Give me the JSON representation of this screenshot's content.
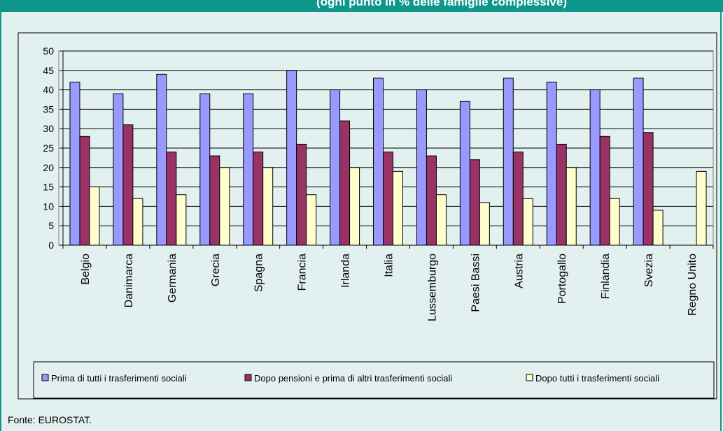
{
  "header": {
    "title": "(ogni punto in % delle famiglie complessive)"
  },
  "source": "Fonte: EUROSTAT.",
  "chart_data": {
    "type": "bar",
    "title": "",
    "xlabel": "",
    "ylabel": "",
    "ylim": [
      0,
      50
    ],
    "yticks": [
      0,
      5,
      10,
      15,
      20,
      25,
      30,
      35,
      40,
      45,
      50
    ],
    "grid": true,
    "legend_position": "bottom",
    "categories": [
      "Belgio",
      "Danimarca",
      "Germania",
      "Grecia",
      "Spagna",
      "Francia",
      "Irlanda",
      "Italia",
      "Lussemburgo",
      "Paesi Bassi",
      "Austria",
      "Portogallo",
      "Finlandia",
      "Svezia",
      "Regno Unito"
    ],
    "series": [
      {
        "name": "Prima di tutti i trasferimenti sociali",
        "color": "#9999ff",
        "values": [
          42,
          39,
          44,
          39,
          39,
          45,
          40,
          43,
          40,
          37,
          43,
          42,
          40,
          43,
          null
        ]
      },
      {
        "name": "Dopo pensioni e prima di altri trasferimenti sociali",
        "color": "#993366",
        "values": [
          28,
          31,
          24,
          23,
          24,
          26,
          32,
          24,
          23,
          22,
          24,
          26,
          28,
          29,
          null
        ]
      },
      {
        "name": "Dopo tutti i trasferimenti sociali",
        "color": "#ffffcc",
        "values": [
          15,
          12,
          13,
          20,
          20,
          13,
          20,
          19,
          13,
          11,
          12,
          20,
          12,
          9,
          19
        ]
      }
    ]
  }
}
